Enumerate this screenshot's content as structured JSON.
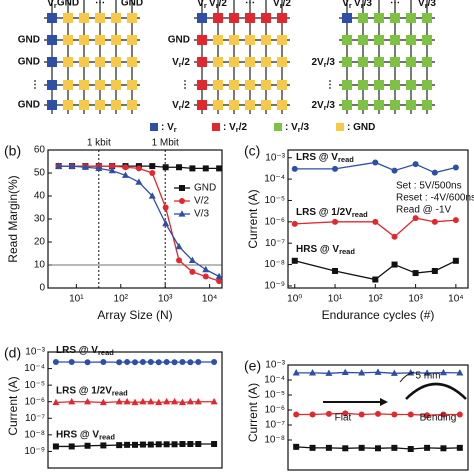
{
  "schematic": {
    "arrays": [
      {
        "col_labels": [
          {
            "main": "V",
            "sub": "r"
          },
          "GND",
          "⋯",
          "GND"
        ],
        "row_labels": [
          null,
          "GND",
          "GND",
          "⋮",
          "GND"
        ]
      },
      {
        "col_labels": [
          {
            "main": "V",
            "sub": "r"
          },
          {
            "main": "V",
            "sub": "r",
            "tail": "/2"
          },
          "⋯",
          {
            "main": "V",
            "sub": "r",
            "tail": "/2"
          }
        ],
        "row_labels": [
          null,
          "GND",
          {
            "main": "V",
            "sub": "r",
            "tail": "/2"
          },
          "⋮",
          {
            "main": "V",
            "sub": "r",
            "tail": "/2"
          }
        ]
      },
      {
        "col_labels": [
          {
            "main": "V",
            "sub": "r"
          },
          {
            "main": "V",
            "sub": "r",
            "tail": "/3"
          },
          "⋯",
          {
            "main": "V",
            "sub": "r",
            "tail": "/3"
          }
        ],
        "row_labels": [
          null,
          null,
          {
            "main": "2V",
            "sub": "r",
            "tail": "/3"
          },
          "⋮",
          {
            "main": "2V",
            "sub": "r",
            "tail": "/3"
          }
        ]
      }
    ],
    "legend": [
      {
        "color": "#2e4fa8",
        "text": {
          "main": ": V",
          "sub": "r"
        }
      },
      {
        "color": "#e0282e",
        "text": {
          "main": ": V",
          "sub": "r",
          "tail": "/2"
        }
      },
      {
        "color": "#7dc242",
        "text": {
          "main": ": V",
          "sub": "r",
          "tail": "/3"
        }
      },
      {
        "color": "#f7c948",
        "text": {
          "main": ": GND"
        }
      }
    ]
  },
  "chart_data": [
    {
      "type": "line",
      "panel_label": "(b)",
      "xlabel": "Array Size (N)",
      "ylabel": "Read Margin(%)",
      "xlog": true,
      "x": [
        4,
        8,
        16,
        32,
        64,
        128,
        256,
        512,
        1024,
        2048,
        4096,
        8192,
        16384
      ],
      "xlim": [
        2.3,
        19000
      ],
      "xticks": [
        {
          "value": 10,
          "label": "10¹"
        },
        {
          "value": 100,
          "label": "10²"
        },
        {
          "value": 1000,
          "label": "10³"
        },
        {
          "value": 10000,
          "label": "10⁴"
        }
      ],
      "ylim": [
        0,
        60
      ],
      "yticks": [
        0,
        10,
        20,
        30,
        40,
        50,
        60
      ],
      "vlines": [
        {
          "value": 32,
          "label": "1 kbit"
        },
        {
          "value": 1000,
          "label": "1 Mbit"
        }
      ],
      "hlines": [
        10
      ],
      "legend": "right",
      "series": [
        {
          "name": "GND",
          "color": "#111111",
          "marker": "square",
          "values": [
            53,
            53,
            53,
            53,
            53,
            53,
            53,
            53,
            52.5,
            52.5,
            52,
            52,
            52
          ]
        },
        {
          "name": "V/2",
          "color": "#e0282e",
          "marker": "circle",
          "values": [
            53,
            53,
            53,
            53,
            53,
            52.5,
            52,
            50,
            35,
            12,
            7,
            5,
            3
          ]
        },
        {
          "name": "V/3",
          "color": "#2e4fa8",
          "marker": "triangle",
          "values": [
            53,
            53,
            52.5,
            52,
            51,
            49,
            46,
            40,
            28,
            18,
            12,
            8,
            5
          ]
        }
      ]
    },
    {
      "type": "line",
      "panel_label": "(c)",
      "xlabel": "Endurance cycles (#)",
      "ylabel": "Current (A)",
      "xlog": true,
      "ylog": true,
      "x": [
        1,
        10,
        100,
        300,
        1000,
        3000,
        10000
      ],
      "xlim": [
        0.68,
        20000
      ],
      "xticks": [
        {
          "value": 1,
          "label": "10⁰"
        },
        {
          "value": 10,
          "label": "10¹"
        },
        {
          "value": 100,
          "label": "10²"
        },
        {
          "value": 1000,
          "label": "10³"
        },
        {
          "value": 10000,
          "label": "10⁴"
        }
      ],
      "ylim": [
        8e-10,
        0.0023
      ],
      "yticks": [
        {
          "value": 0.001,
          "label": "10⁻³"
        },
        {
          "value": 0.0001,
          "label": "10⁻⁴"
        },
        {
          "value": 1e-05,
          "label": "10⁻⁵"
        },
        {
          "value": 1e-06,
          "label": "10⁻⁶"
        },
        {
          "value": 1e-07,
          "label": "10⁻⁷"
        },
        {
          "value": 1e-08,
          "label": "10⁻⁸"
        },
        {
          "value": 1e-09,
          "label": "10⁻⁹"
        }
      ],
      "annotations": [
        "Set : 5V/500ns",
        "Reset : -4V/600ns",
        "Read @ -1V"
      ],
      "series": [
        {
          "name": {
            "main": "LRS @ V",
            "sub": "read"
          },
          "color": "#2e4fa8",
          "marker": "circle",
          "values": [
            0.0003,
            0.0003,
            0.0006,
            0.00025,
            0.0005,
            0.0002,
            0.00035
          ]
        },
        {
          "name": {
            "main": "LRS @ 1/2V",
            "sub": "read"
          },
          "color": "#e0282e",
          "marker": "circle",
          "values": [
            8e-07,
            1e-06,
            1e-06,
            2e-07,
            1.5e-06,
            1e-06,
            1.2e-06
          ]
        },
        {
          "name": {
            "main": "HRS @ V",
            "sub": "read"
          },
          "color": "#111111",
          "marker": "square",
          "values": [
            1.5e-08,
            5e-09,
            2e-09,
            1e-08,
            4e-09,
            5e-09,
            1.5e-08
          ]
        }
      ]
    },
    {
      "type": "line",
      "panel_label": "(d)",
      "ylabel": "Current (A)",
      "ylog": true,
      "x": [
        0,
        10,
        20,
        30,
        40,
        45,
        50,
        55,
        60,
        65,
        70,
        75,
        80,
        85,
        90,
        100
      ],
      "xlim": [
        -5,
        105
      ],
      "ylim": [
        1e-10,
        0.001
      ],
      "yticks": [
        {
          "value": 0.001,
          "label": "10⁻³"
        },
        {
          "value": 0.0001,
          "label": "10⁻⁴"
        },
        {
          "value": 1e-05,
          "label": "10⁻⁵"
        },
        {
          "value": 1e-06,
          "label": "10⁻⁶"
        },
        {
          "value": 1e-07,
          "label": "10⁻⁷"
        },
        {
          "value": 1e-08,
          "label": "10⁻⁸"
        },
        {
          "value": 1e-09,
          "label": "10⁻⁹"
        }
      ],
      "series": [
        {
          "name": {
            "main": "LRS @ V",
            "sub": "read"
          },
          "color": "#2e4fa8",
          "marker": "circle",
          "values": [
            0.00025,
            0.00025,
            0.00024,
            0.00025,
            0.00024,
            0.00025,
            0.00024,
            0.00025,
            0.00025,
            0.00024,
            0.00025,
            0.00024,
            0.00025,
            0.00024,
            0.00025,
            0.00025
          ]
        },
        {
          "name": {
            "main": "LRS @ 1/2V",
            "sub": "read"
          },
          "color": "#e0282e",
          "marker": "triangle",
          "values": [
            9e-07,
            1e-06,
            1e-06,
            9e-07,
            1e-06,
            1e-06,
            9e-07,
            1e-06,
            1e-06,
            9e-07,
            1e-06,
            1e-06,
            9e-07,
            1e-06,
            1e-06,
            1e-06
          ]
        },
        {
          "name": {
            "main": "HRS @ V",
            "sub": "read"
          },
          "color": "#111111",
          "marker": "square",
          "values": [
            2e-09,
            2e-09,
            2.2e-09,
            2.3e-09,
            2.4e-09,
            2.5e-09,
            2.5e-09,
            2.6e-09,
            2.6e-09,
            2.7e-09,
            2.7e-09,
            2.7e-09,
            2.8e-09,
            2.8e-09,
            2.8e-09,
            2.8e-09
          ]
        }
      ]
    },
    {
      "type": "line",
      "panel_label": "(e)",
      "ylabel": "Current (A)",
      "ylog": true,
      "x": [
        0,
        1,
        2,
        3,
        4,
        5,
        6,
        7,
        8,
        9,
        10
      ],
      "xlim": [
        -0.5,
        10.5
      ],
      "ylim": [
        1e-10,
        0.001
      ],
      "yticks": [
        {
          "value": 0.001,
          "label": "10⁻³"
        },
        {
          "value": 0.0001,
          "label": "10⁻⁴"
        },
        {
          "value": 1e-05,
          "label": "10⁻⁵"
        },
        {
          "value": 1e-06,
          "label": "10⁻⁶"
        },
        {
          "value": 1e-07,
          "label": "10⁻⁷"
        },
        {
          "value": 1e-08,
          "label": "10⁻⁸"
        }
      ],
      "annotations": [
        "Flat",
        "Bending",
        "5 mm"
      ],
      "series": [
        {
          "color": "#2e4fa8",
          "marker": "triangle",
          "values": [
            0.0003,
            0.0003,
            0.00028,
            0.00032,
            0.0003,
            0.00033,
            0.00028,
            0.0003,
            0.00029,
            0.00031,
            0.0003
          ]
        },
        {
          "color": "#e0282e",
          "marker": "circle",
          "values": [
            5e-07,
            5e-07,
            5.5e-07,
            6e-07,
            5e-07,
            5.5e-07,
            5e-07,
            5e-07,
            4.5e-07,
            5e-07,
            5e-07
          ]
        },
        {
          "color": "#111111",
          "marker": "square",
          "values": [
            3.5e-09,
            3e-09,
            3e-09,
            2.8e-09,
            3e-09,
            2.8e-09,
            3e-09,
            2.5e-09,
            3e-09,
            2.8e-09,
            3e-09
          ]
        }
      ]
    }
  ]
}
